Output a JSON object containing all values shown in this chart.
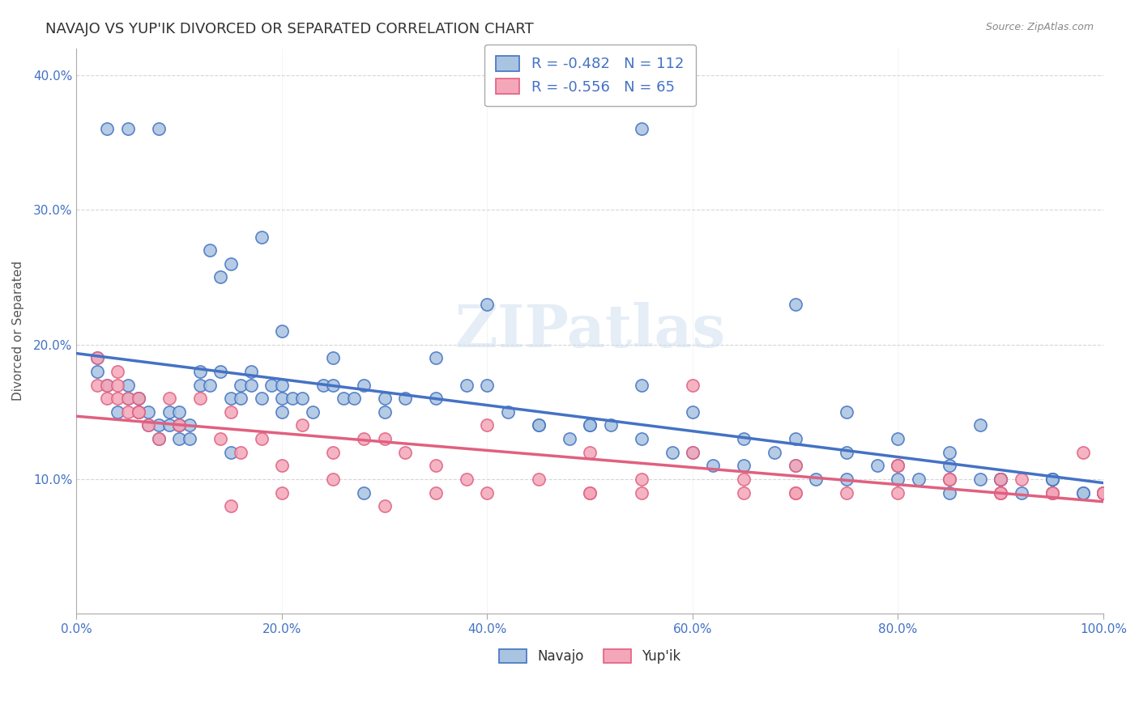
{
  "title": "NAVAJO VS YUP'IK DIVORCED OR SEPARATED CORRELATION CHART",
  "source": "Source: ZipAtlas.com",
  "xlabel_ticks": [
    "0.0%",
    "20.0%",
    "40.0%",
    "60.0%",
    "80.0%",
    "100.0%"
  ],
  "ylabel": "Divorced or Separated",
  "ylabel_ticks": [
    "10.0%",
    "20.0%",
    "30.0%",
    "40.0%"
  ],
  "navajo_R": -0.482,
  "navajo_N": 112,
  "yupik_R": -0.556,
  "yupik_N": 65,
  "navajo_color": "#a8c4e0",
  "navajo_line_color": "#4472c4",
  "yupik_color": "#f4a7b9",
  "yupik_line_color": "#e06080",
  "watermark": "ZIPatlas",
  "background_color": "#ffffff",
  "navajo_points_x": [
    0.02,
    0.03,
    0.04,
    0.05,
    0.05,
    0.06,
    0.06,
    0.07,
    0.07,
    0.08,
    0.08,
    0.09,
    0.09,
    0.1,
    0.1,
    0.1,
    0.11,
    0.11,
    0.12,
    0.12,
    0.13,
    0.13,
    0.14,
    0.14,
    0.15,
    0.15,
    0.16,
    0.16,
    0.17,
    0.17,
    0.18,
    0.19,
    0.2,
    0.2,
    0.21,
    0.22,
    0.23,
    0.24,
    0.25,
    0.26,
    0.27,
    0.28,
    0.3,
    0.32,
    0.35,
    0.38,
    0.4,
    0.42,
    0.45,
    0.48,
    0.5,
    0.52,
    0.55,
    0.58,
    0.6,
    0.62,
    0.65,
    0.68,
    0.7,
    0.72,
    0.75,
    0.78,
    0.8,
    0.82,
    0.85,
    0.88,
    0.9,
    0.92,
    0.95,
    0.98,
    1.0,
    0.03,
    0.05,
    0.08,
    0.18,
    0.28,
    0.55,
    0.02,
    0.06,
    0.1,
    0.15,
    0.2,
    0.25,
    0.3,
    0.35,
    0.4,
    0.45,
    0.5,
    0.55,
    0.6,
    0.65,
    0.7,
    0.75,
    0.8,
    0.85,
    0.9,
    0.95,
    1.0,
    0.2,
    0.7,
    0.85,
    0.9,
    0.95,
    0.98,
    0.75,
    0.8,
    0.85,
    0.9,
    0.95,
    1.0,
    0.88
  ],
  "navajo_points_y": [
    0.19,
    0.17,
    0.15,
    0.16,
    0.17,
    0.15,
    0.16,
    0.14,
    0.15,
    0.13,
    0.14,
    0.14,
    0.15,
    0.13,
    0.14,
    0.15,
    0.13,
    0.14,
    0.17,
    0.18,
    0.27,
    0.17,
    0.18,
    0.25,
    0.26,
    0.16,
    0.16,
    0.17,
    0.17,
    0.18,
    0.16,
    0.17,
    0.16,
    0.17,
    0.16,
    0.16,
    0.15,
    0.17,
    0.19,
    0.16,
    0.16,
    0.17,
    0.15,
    0.16,
    0.19,
    0.17,
    0.23,
    0.15,
    0.14,
    0.13,
    0.14,
    0.14,
    0.13,
    0.12,
    0.12,
    0.11,
    0.11,
    0.12,
    0.11,
    0.1,
    0.1,
    0.11,
    0.1,
    0.1,
    0.11,
    0.1,
    0.1,
    0.09,
    0.1,
    0.09,
    0.09,
    0.36,
    0.36,
    0.36,
    0.28,
    0.09,
    0.36,
    0.18,
    0.16,
    0.14,
    0.12,
    0.15,
    0.17,
    0.16,
    0.16,
    0.17,
    0.14,
    0.14,
    0.17,
    0.15,
    0.13,
    0.13,
    0.12,
    0.11,
    0.1,
    0.1,
    0.1,
    0.09,
    0.21,
    0.23,
    0.09,
    0.1,
    0.1,
    0.09,
    0.15,
    0.13,
    0.12,
    0.1,
    0.09,
    0.09,
    0.14
  ],
  "yupik_points_x": [
    0.02,
    0.03,
    0.03,
    0.04,
    0.04,
    0.05,
    0.05,
    0.06,
    0.06,
    0.07,
    0.08,
    0.09,
    0.1,
    0.12,
    0.14,
    0.16,
    0.18,
    0.2,
    0.22,
    0.25,
    0.28,
    0.3,
    0.32,
    0.35,
    0.38,
    0.4,
    0.45,
    0.5,
    0.55,
    0.6,
    0.65,
    0.7,
    0.75,
    0.8,
    0.85,
    0.9,
    0.95,
    0.98,
    0.02,
    0.04,
    0.06,
    0.15,
    0.25,
    0.35,
    0.5,
    0.6,
    0.7,
    0.8,
    0.9,
    1.0,
    0.85,
    0.9,
    0.95,
    1.0,
    0.4,
    0.55,
    0.7,
    0.8,
    0.9,
    0.2,
    0.5,
    0.92,
    0.15,
    0.3,
    0.65
  ],
  "yupik_points_y": [
    0.17,
    0.16,
    0.17,
    0.16,
    0.17,
    0.15,
    0.16,
    0.15,
    0.16,
    0.14,
    0.13,
    0.16,
    0.14,
    0.16,
    0.13,
    0.12,
    0.13,
    0.11,
    0.14,
    0.12,
    0.13,
    0.13,
    0.12,
    0.11,
    0.1,
    0.14,
    0.1,
    0.12,
    0.1,
    0.12,
    0.1,
    0.11,
    0.09,
    0.11,
    0.1,
    0.1,
    0.09,
    0.12,
    0.19,
    0.18,
    0.15,
    0.15,
    0.1,
    0.09,
    0.09,
    0.17,
    0.09,
    0.09,
    0.09,
    0.09,
    0.1,
    0.09,
    0.09,
    0.09,
    0.09,
    0.09,
    0.09,
    0.11,
    0.09,
    0.09,
    0.09,
    0.1,
    0.08,
    0.08,
    0.09
  ]
}
